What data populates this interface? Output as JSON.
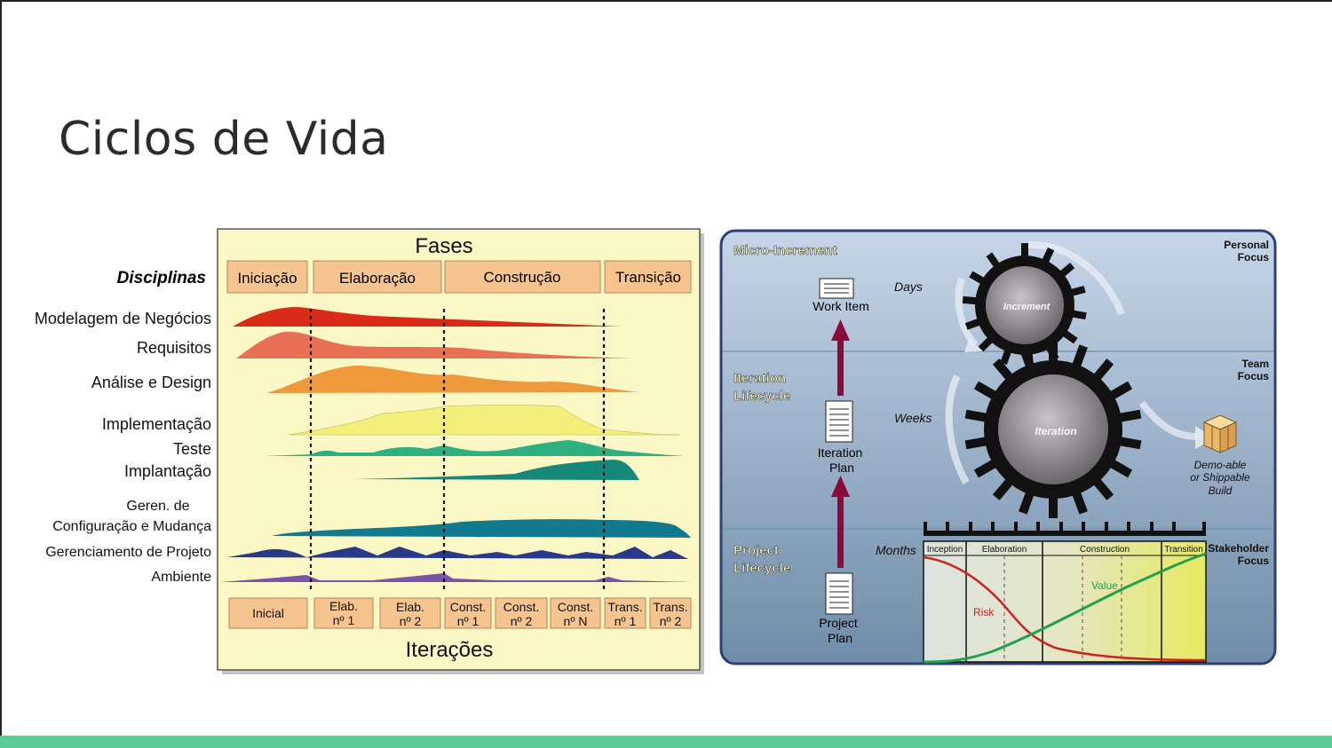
{
  "slide": {
    "title": "Ciclos de Vida"
  },
  "rup": {
    "phases_title": "Fases",
    "disciplines_title": "Disciplinas",
    "phases": [
      "Iniciação",
      "Elaboração",
      "Construção",
      "Transição"
    ],
    "disciplines": {
      "d1": "Modelagem de Negócios",
      "d2": "Requisitos",
      "d3": "Análise e Design",
      "d4": "Implementação",
      "d5": "Teste",
      "d6": "Implantação",
      "d7a": "Geren. de",
      "d7b": "Configuração e Mudança",
      "d8": "Gerenciamento de Projeto",
      "d9": "Ambiente"
    },
    "iterations_title": "Iterações",
    "iterations": {
      "i1": "Inicial",
      "i2a": "Elab.",
      "i2b": "nº 1",
      "i3a": "Elab.",
      "i3b": "nº 2",
      "i4a": "Const.",
      "i4b": "nº 1",
      "i5a": "Const.",
      "i5b": "nº 2",
      "i6a": "Const.",
      "i6b": "nº N",
      "i7a": "Trans.",
      "i7b": "nº 1",
      "i8a": "Trans.",
      "i8b": "nº 2"
    },
    "colors": {
      "background": "#fbf8c6",
      "box": "#f6c48e"
    }
  },
  "openup": {
    "micro_increment": "Micro-Increment",
    "iteration_lifecycle_1": "Iteration",
    "iteration_lifecycle_2": "Lifecycle",
    "project_lifecycle_1": "Project",
    "project_lifecycle_2": "Lifecycle",
    "personal_focus_1": "Personal",
    "personal_focus_2": "Focus",
    "team_focus_1": "Team",
    "team_focus_2": "Focus",
    "stakeholder_focus_1": "Stakeholder",
    "stakeholder_focus_2": "Focus",
    "work_item": "Work Item",
    "iteration_plan_1": "Iteration",
    "iteration_plan_2": "Plan",
    "project_plan_1": "Project",
    "project_plan_2": "Plan",
    "days": "Days",
    "weeks": "Weeks",
    "months": "Months",
    "increment": "Increment",
    "iteration": "Iteration",
    "build_1": "Demo-able",
    "build_2": "or Shippable",
    "build_3": "Build",
    "phases": {
      "p1": "Inception",
      "p2": "Elaboration",
      "p3": "Construction",
      "p4": "Transition"
    },
    "risk": "Risk",
    "value": "Value",
    "colors": {
      "risk": "#cc2222",
      "value": "#22a050",
      "arrow": "#8b0a3a",
      "border": "#2f3f7a"
    }
  }
}
